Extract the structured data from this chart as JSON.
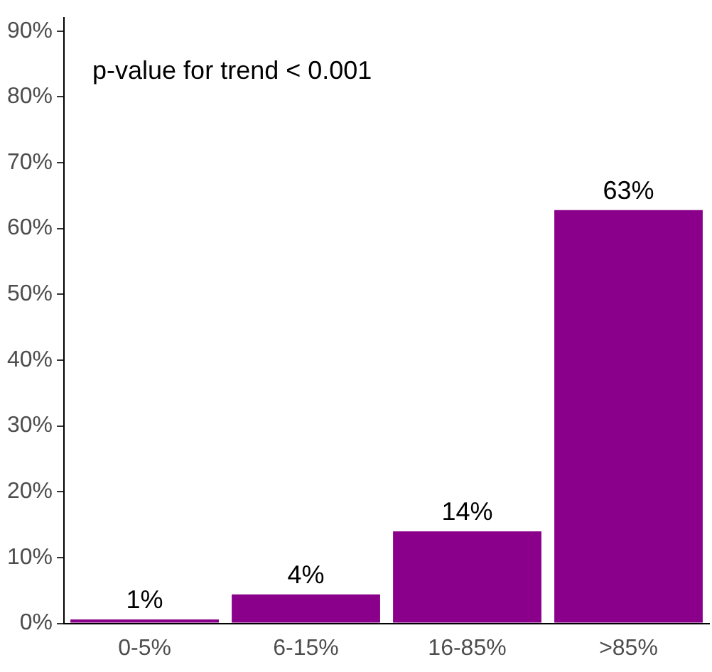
{
  "chart_data": {
    "type": "bar",
    "categories": [
      "0-5%",
      "6-15%",
      "16-85%",
      ">85%"
    ],
    "values": [
      0.6,
      4.4,
      14,
      62.8
    ],
    "value_labels": [
      "1%",
      "4%",
      "14%",
      "63%"
    ],
    "color": "#8b008b",
    "ylim": [
      0,
      92
    ],
    "yticks": [
      {
        "value": 0,
        "label": "0%"
      },
      {
        "value": 10,
        "label": "10%"
      },
      {
        "value": 20,
        "label": "20%"
      },
      {
        "value": 30,
        "label": "30%"
      },
      {
        "value": 40,
        "label": "40%"
      },
      {
        "value": 50,
        "label": "50%"
      },
      {
        "value": 60,
        "label": "60%"
      },
      {
        "value": 70,
        "label": "70%"
      },
      {
        "value": 80,
        "label": "80%"
      },
      {
        "value": 90,
        "label": "90%"
      }
    ],
    "grid": false,
    "legend": false,
    "annotations": [
      "p-value for trend < 0.001"
    ]
  }
}
